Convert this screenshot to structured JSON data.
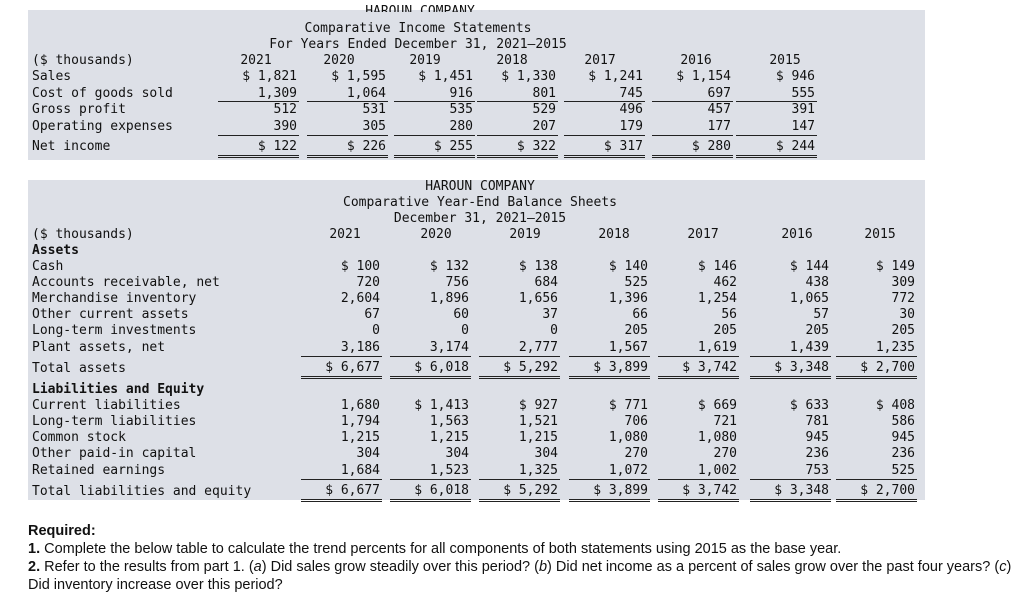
{
  "income": {
    "company_clipped": "HAROUN COMPANY",
    "title": "Comparative Income Statements",
    "subtitle": "For Years Ended December 31, 2021–2015",
    "units_label": "($ thousands)",
    "years": [
      "2021",
      "2020",
      "2019",
      "2018",
      "2017",
      "2016",
      "2015"
    ],
    "rows": [
      {
        "label": "Sales",
        "values": [
          "$ 1,821",
          "$ 1,595",
          "$ 1,451",
          "$ 1,330",
          "$ 1,241",
          "$ 1,154",
          "$ 946"
        ]
      },
      {
        "label": "Cost of goods sold",
        "values": [
          "1,309",
          "1,064",
          "916",
          "801",
          "745",
          "697",
          "555"
        ]
      },
      {
        "label": "Gross profit",
        "values": [
          "512",
          "531",
          "535",
          "529",
          "496",
          "457",
          "391"
        ]
      },
      {
        "label": "Operating expenses",
        "values": [
          "390",
          "305",
          "280",
          "207",
          "179",
          "177",
          "147"
        ]
      },
      {
        "label": "Net income",
        "values": [
          "$ 122",
          "$ 226",
          "$ 255",
          "$ 322",
          "$ 317",
          "$ 280",
          "$ 244"
        ]
      }
    ]
  },
  "balance": {
    "company": "HAROUN COMPANY",
    "title": "Comparative Year-End Balance Sheets",
    "subtitle": "December 31, 2021–2015",
    "units_label": "($ thousands)",
    "years": [
      "2021",
      "2020",
      "2019",
      "2018",
      "2017",
      "2016",
      "2015"
    ],
    "assets_heading": "Assets",
    "liab_heading": "Liabilities and Equity",
    "assets": [
      {
        "label": "Cash",
        "values": [
          "$ 100",
          "$ 132",
          "$ 138",
          "$ 140",
          "$ 146",
          "$ 144",
          "$ 149"
        ]
      },
      {
        "label": "Accounts receivable, net",
        "values": [
          "720",
          "756",
          "684",
          "525",
          "462",
          "438",
          "309"
        ]
      },
      {
        "label": "Merchandise inventory",
        "values": [
          "2,604",
          "1,896",
          "1,656",
          "1,396",
          "1,254",
          "1,065",
          "772"
        ]
      },
      {
        "label": "Other current assets",
        "values": [
          "67",
          "60",
          "37",
          "66",
          "56",
          "57",
          "30"
        ]
      },
      {
        "label": "Long-term investments",
        "values": [
          "0",
          "0",
          "0",
          "205",
          "205",
          "205",
          "205"
        ]
      },
      {
        "label": "Plant assets, net",
        "values": [
          "3,186",
          "3,174",
          "2,777",
          "1,567",
          "1,619",
          "1,439",
          "1,235"
        ]
      }
    ],
    "total_assets": {
      "label": "Total assets",
      "values": [
        "$ 6,677",
        "$ 6,018",
        "$ 5,292",
        "$ 3,899",
        "$ 3,742",
        "$ 3,348",
        "$ 2,700"
      ]
    },
    "liabilities": [
      {
        "label": "Current liabilities",
        "values": [
          "1,680",
          "$ 1,413",
          "$ 927",
          "$ 771",
          "$ 669",
          "$ 633",
          "$ 408"
        ]
      },
      {
        "label": "Long-term liabilities",
        "values": [
          "1,794",
          "1,563",
          "1,521",
          "706",
          "721",
          "781",
          "586"
        ]
      },
      {
        "label": "Common stock",
        "values": [
          "1,215",
          "1,215",
          "1,215",
          "1,080",
          "1,080",
          "945",
          "945"
        ]
      },
      {
        "label": "Other paid-in capital",
        "values": [
          "304",
          "304",
          "304",
          "270",
          "270",
          "236",
          "236"
        ]
      },
      {
        "label": "Retained earnings",
        "values": [
          "1,684",
          "1,523",
          "1,325",
          "1,072",
          "1,002",
          "753",
          "525"
        ]
      }
    ],
    "total_liab": {
      "label": "Total liabilities and equity",
      "values": [
        "$ 6,677",
        "$ 6,018",
        "$ 5,292",
        "$ 3,899",
        "$ 3,742",
        "$ 3,348",
        "$ 2,700"
      ]
    }
  },
  "required": {
    "heading": "Required:",
    "item1_num": "1.",
    "item1": "Complete the below table to calculate the trend percents for all components of both statements using 2015 as the base year.",
    "item2_num": "2.",
    "item2_pre": "Refer to the results from part 1. (",
    "item2_a": "a",
    "item2_mid1": ") Did sales grow steadily over this period? (",
    "item2_b": "b",
    "item2_mid2": ") Did net income as a percent of sales grow over the past four years? (",
    "item2_c": "c",
    "item2_end": ") Did inventory increase over this period?"
  }
}
